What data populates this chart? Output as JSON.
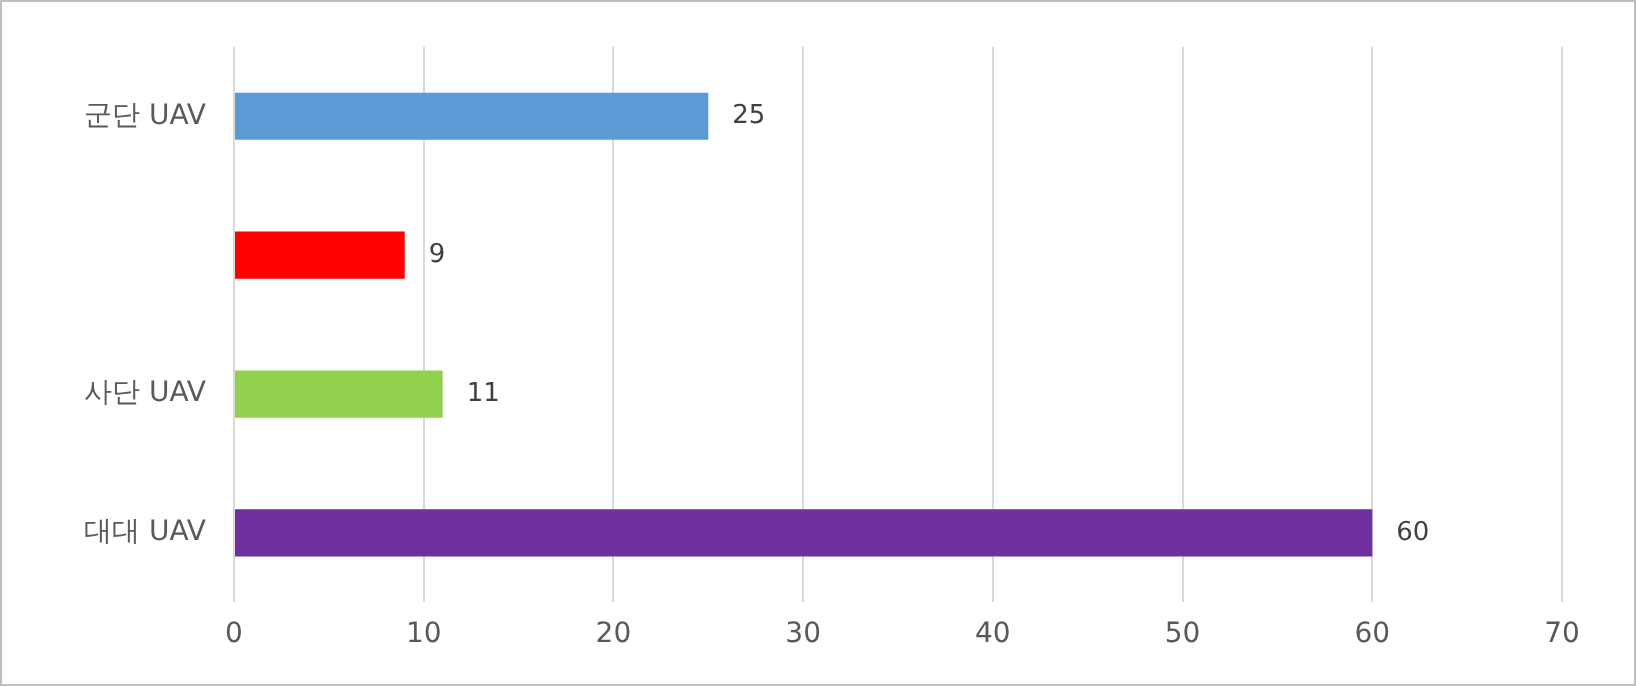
{
  "chart_data": {
    "type": "bar",
    "orientation": "horizontal",
    "categories": [
      "군단 UAV",
      null,
      "사단 UAV",
      "대대 UAV"
    ],
    "values": [
      25,
      9,
      11,
      60
    ],
    "colors": [
      "#5b9bd5",
      "#ff0000",
      "#92d050",
      "#7030a0"
    ],
    "xlim": [
      0,
      70
    ],
    "xticks": [
      0,
      10,
      20,
      30,
      40,
      50,
      60,
      70
    ],
    "grid": "x",
    "data_labels": true,
    "legend": false
  }
}
